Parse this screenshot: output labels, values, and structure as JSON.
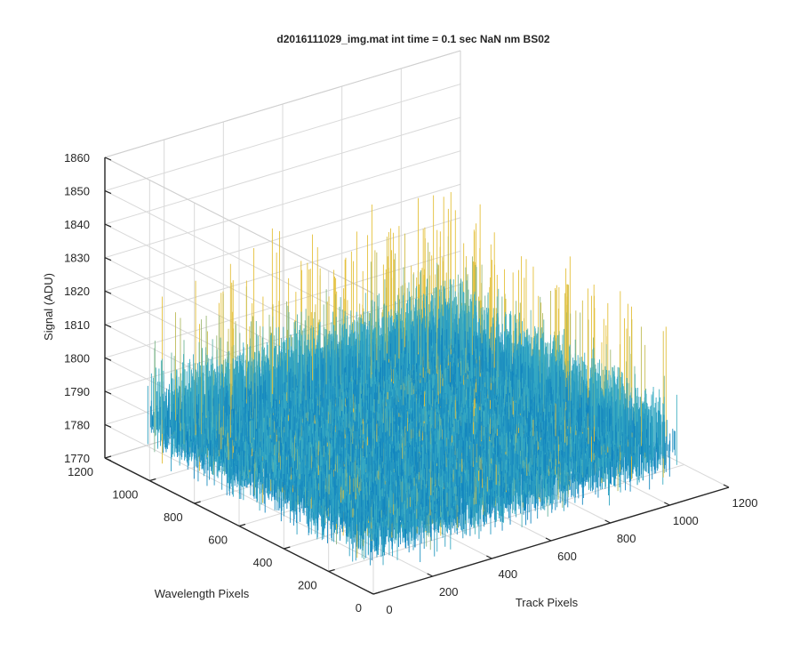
{
  "chart_data": {
    "type": "surface",
    "title": "d2016111029_img.mat int time = 0.1 sec  NaN nm BS02",
    "xlabel": "Track Pixels",
    "ylabel": "Wavelength Pixels",
    "zlabel": "Signal (ADU)",
    "xlim": [
      0,
      1200
    ],
    "ylim": [
      0,
      1200
    ],
    "zlim": [
      1770,
      1860
    ],
    "x_ticks": [
      "0",
      "200",
      "400",
      "600",
      "800",
      "1000",
      "1200"
    ],
    "y_ticks": [
      "0",
      "200",
      "400",
      "600",
      "800",
      "1000",
      "1200"
    ],
    "z_ticks": [
      "1770",
      "1780",
      "1790",
      "1800",
      "1810",
      "1820",
      "1830",
      "1840",
      "1850",
      "1860"
    ],
    "grid": true,
    "colormap": "parula",
    "data_extent": {
      "x": [
        0,
        1024
      ],
      "y": [
        0,
        1024
      ]
    },
    "baseline_signal": 1792,
    "noise_envelope": [
      1775,
      1850
    ],
    "colors": {
      "low": "#0072bd",
      "mid": "#3db0c4",
      "high": "#e4c03a",
      "axis": "#262626",
      "grid": "#d9d9d9"
    }
  }
}
